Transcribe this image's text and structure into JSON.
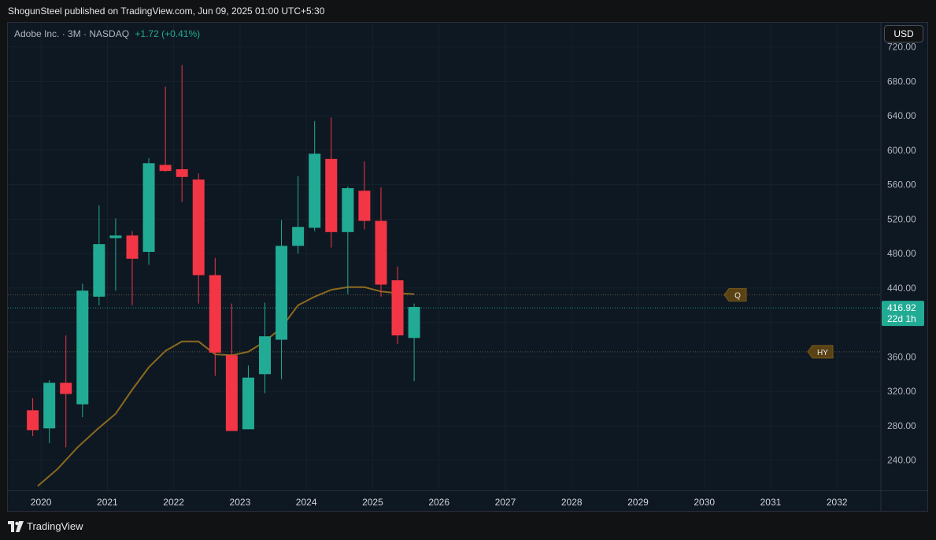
{
  "header": {
    "publisher_line": "ShogunSteel published on TradingView.com, Jun 09, 2025 01:00 UTC+5:30"
  },
  "legend": {
    "symbol": "Adobe Inc. · 3M · NASDAQ",
    "change": "+1.72 (+0.41%)"
  },
  "currency_button": "USD",
  "footer": {
    "brand": "TradingView"
  },
  "colors": {
    "up": "#22ab94",
    "down": "#f23645",
    "ma": "#8b6a1f",
    "background": "#0e1822"
  },
  "chart_data": {
    "type": "candlestick",
    "yticks": [
      240,
      280,
      320,
      360,
      400,
      440,
      480,
      520,
      560,
      600,
      640,
      680,
      720
    ],
    "ytick_labels": [
      "240.00",
      "280.00",
      "320.00",
      "360.00",
      "",
      "440.00",
      "480.00",
      "520.00",
      "560.00",
      "600.00",
      "640.00",
      "680.00",
      "720.00"
    ],
    "ylim": [
      205,
      748
    ],
    "xlim": [
      2019.5,
      2032.65
    ],
    "xticks": [
      "2020",
      "2021",
      "2022",
      "2023",
      "2024",
      "2025",
      "2026",
      "2027",
      "2028",
      "2029",
      "2030",
      "2031",
      "2032"
    ],
    "last_price": {
      "value": 416.92,
      "label": "416.92",
      "countdown": "22d 1h"
    },
    "levels": [
      {
        "name": "Q",
        "value": 432,
        "label": "Q"
      },
      {
        "name": "HY",
        "value": 366,
        "label": "HY"
      }
    ],
    "candles": [
      {
        "t": 2019.875,
        "o": 298,
        "h": 312,
        "l": 268,
        "c": 275
      },
      {
        "t": 2020.125,
        "o": 277,
        "h": 333,
        "l": 260,
        "c": 330
      },
      {
        "t": 2020.375,
        "o": 330,
        "h": 385,
        "l": 255,
        "c": 317
      },
      {
        "t": 2020.625,
        "o": 305,
        "h": 445,
        "l": 290,
        "c": 437
      },
      {
        "t": 2020.875,
        "o": 430,
        "h": 536,
        "l": 420,
        "c": 491
      },
      {
        "t": 2021.125,
        "o": 498,
        "h": 521,
        "l": 437,
        "c": 501
      },
      {
        "t": 2021.375,
        "o": 501,
        "h": 506,
        "l": 420,
        "c": 474
      },
      {
        "t": 2021.625,
        "o": 482,
        "h": 591,
        "l": 467,
        "c": 585
      },
      {
        "t": 2021.875,
        "o": 583,
        "h": 674,
        "l": 575,
        "c": 576
      },
      {
        "t": 2022.125,
        "o": 578,
        "h": 699,
        "l": 540,
        "c": 569
      },
      {
        "t": 2022.375,
        "o": 566,
        "h": 573,
        "l": 422,
        "c": 455
      },
      {
        "t": 2022.625,
        "o": 455,
        "h": 475,
        "l": 338,
        "c": 365
      },
      {
        "t": 2022.875,
        "o": 362,
        "h": 422,
        "l": 274,
        "c": 274
      },
      {
        "t": 2023.125,
        "o": 276,
        "h": 350,
        "l": 276,
        "c": 336
      },
      {
        "t": 2023.375,
        "o": 340,
        "h": 423,
        "l": 318,
        "c": 384
      },
      {
        "t": 2023.625,
        "o": 380,
        "h": 519,
        "l": 334,
        "c": 489
      },
      {
        "t": 2023.875,
        "o": 489,
        "h": 570,
        "l": 480,
        "c": 511
      },
      {
        "t": 2024.125,
        "o": 510,
        "h": 634,
        "l": 506,
        "c": 596
      },
      {
        "t": 2024.375,
        "o": 590,
        "h": 638,
        "l": 487,
        "c": 505
      },
      {
        "t": 2024.625,
        "o": 505,
        "h": 558,
        "l": 433,
        "c": 556
      },
      {
        "t": 2024.875,
        "o": 553,
        "h": 587,
        "l": 508,
        "c": 518
      },
      {
        "t": 2025.125,
        "o": 518,
        "h": 557,
        "l": 430,
        "c": 444
      },
      {
        "t": 2025.375,
        "o": 449,
        "h": 465,
        "l": 375,
        "c": 385
      },
      {
        "t": 2025.625,
        "o": 382,
        "h": 422,
        "l": 332,
        "c": 418
      }
    ],
    "ma": [
      [
        2019.95,
        210
      ],
      [
        2020.25,
        230
      ],
      [
        2020.55,
        255
      ],
      [
        2020.85,
        276
      ],
      [
        2021.125,
        294
      ],
      [
        2021.375,
        322
      ],
      [
        2021.625,
        348
      ],
      [
        2021.875,
        367
      ],
      [
        2022.125,
        378
      ],
      [
        2022.375,
        378
      ],
      [
        2022.625,
        363
      ],
      [
        2022.875,
        362
      ],
      [
        2023.125,
        366
      ],
      [
        2023.375,
        378
      ],
      [
        2023.625,
        394
      ],
      [
        2023.875,
        420
      ],
      [
        2024.125,
        430
      ],
      [
        2024.375,
        438
      ],
      [
        2024.625,
        441
      ],
      [
        2024.875,
        441
      ],
      [
        2025.125,
        436
      ],
      [
        2025.375,
        434
      ],
      [
        2025.625,
        433
      ]
    ]
  }
}
